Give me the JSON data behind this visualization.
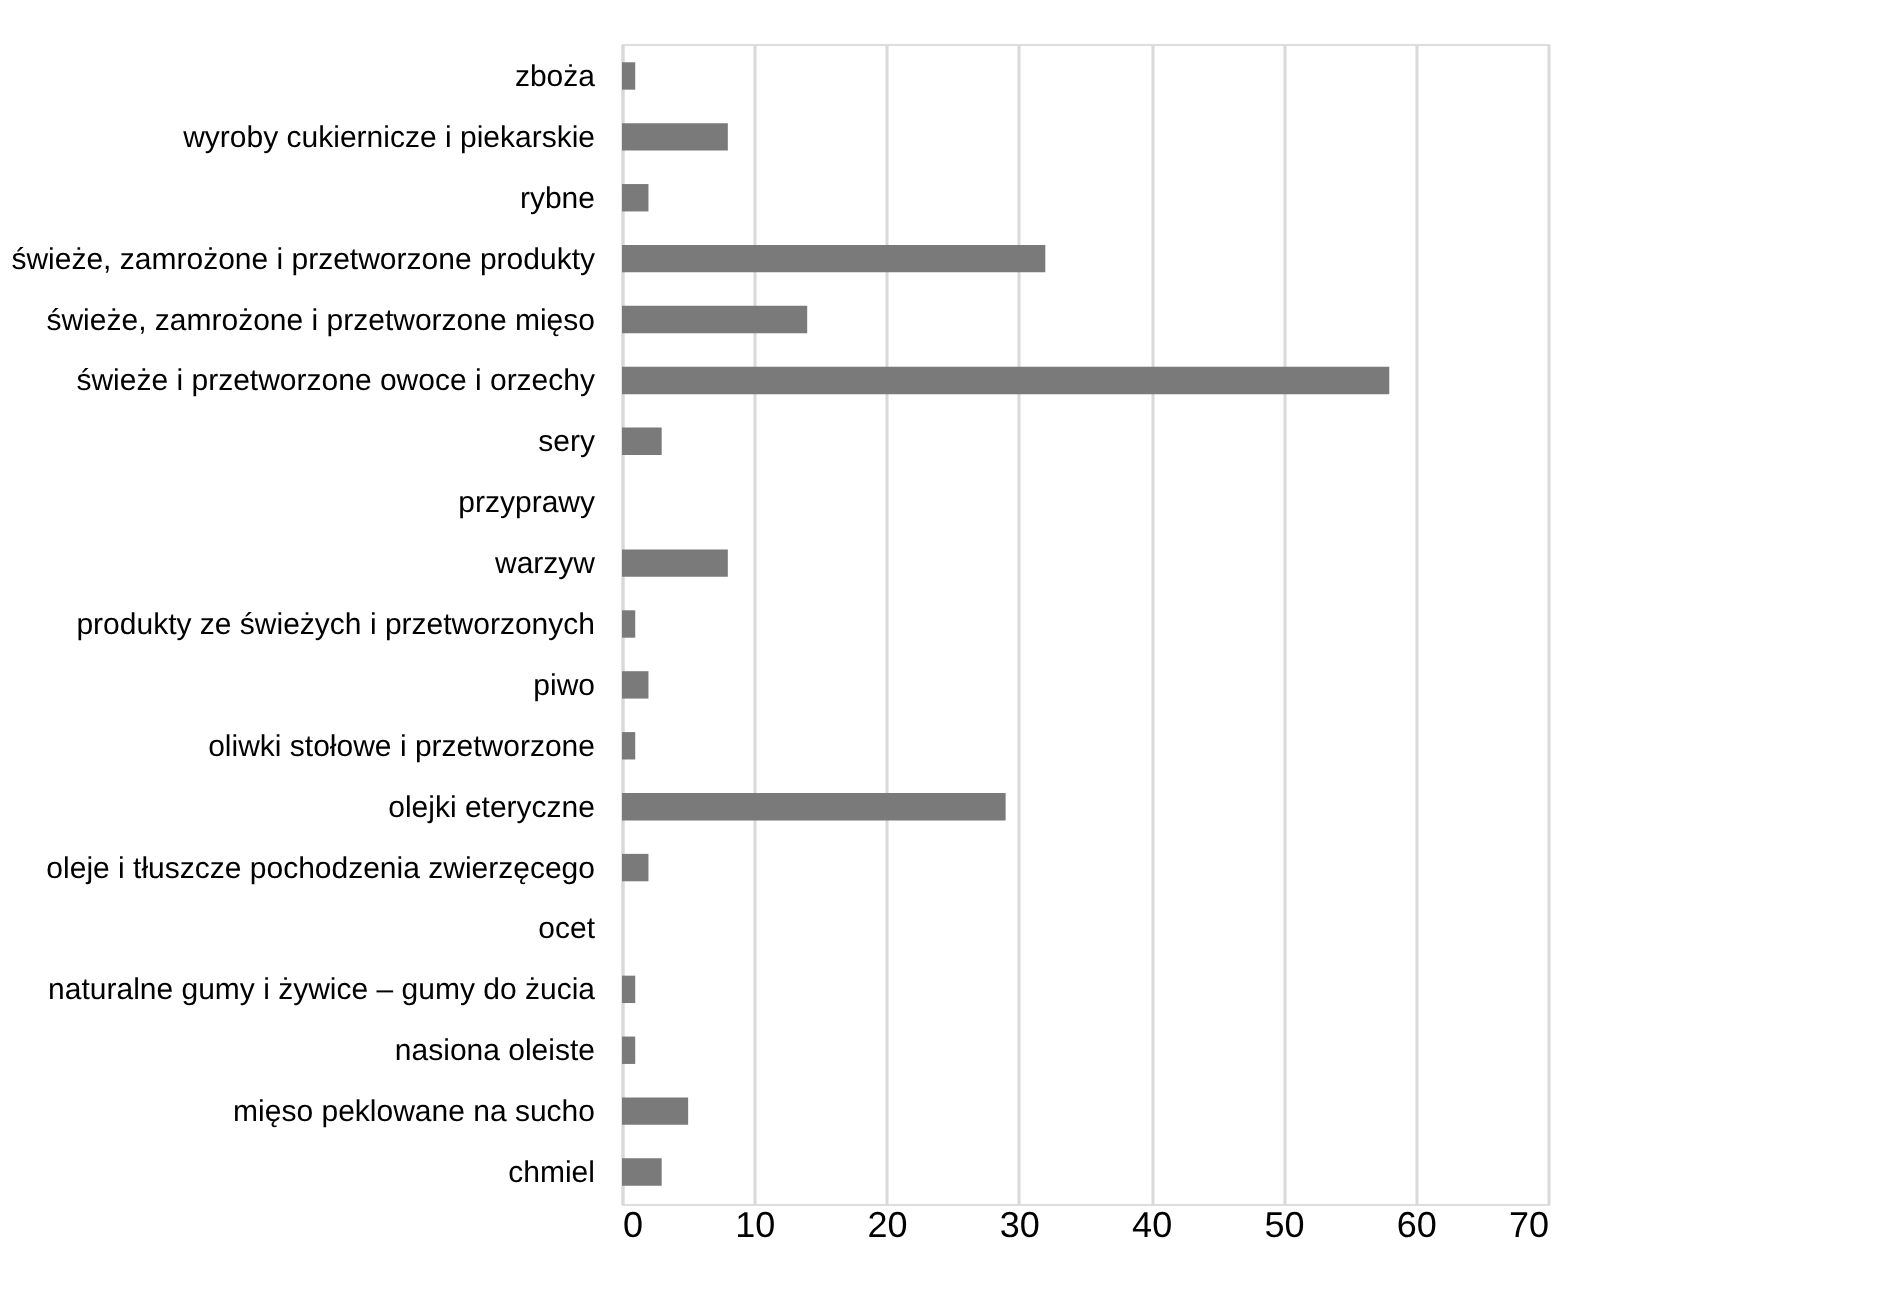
{
  "chart_data": {
    "type": "bar",
    "orientation": "horizontal",
    "categories": [
      "zboża",
      "wyroby cukiernicze i piekarskie",
      "rybne",
      "świeże, zamrożone i przetworzone produkty",
      "świeże, zamrożone i przetworzone mięso",
      "świeże i przetworzone owoce i orzechy",
      "sery",
      "przyprawy",
      "warzyw",
      "produkty ze świeżych i przetworzonych",
      "piwo",
      "oliwki stołowe i przetworzone",
      "olejki eteryczne",
      "oleje i tłuszcze pochodzenia zwierzęcego",
      "ocet",
      "naturalne gumy i żywice – gumy do żucia",
      "nasiona oleiste",
      "mięso peklowane na sucho",
      "chmiel"
    ],
    "values": [
      1,
      8,
      2,
      32,
      14,
      58,
      3,
      null,
      8,
      1,
      2,
      1,
      29,
      2,
      null,
      1,
      1,
      5,
      3
    ],
    "color": "#7a7a7a",
    "xlim": [
      0,
      70
    ],
    "xticks": [
      0,
      10,
      20,
      30,
      40,
      50,
      60,
      70
    ],
    "grid": "x"
  }
}
